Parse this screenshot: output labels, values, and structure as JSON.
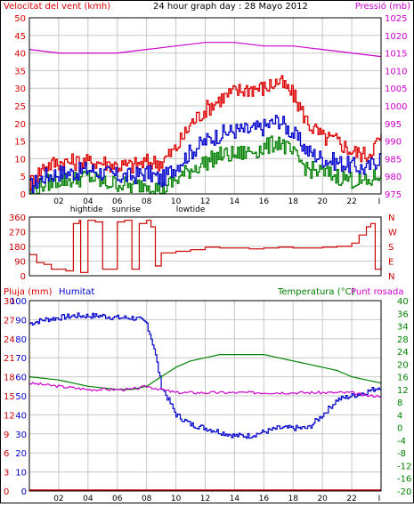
{
  "colors": {
    "wind_avg": "#0000cc",
    "wind_gust": "#dd0000",
    "wind_min": "#008000",
    "pressure": "#cc00cc",
    "direction": "#cc0000",
    "humidity": "#0000cc",
    "rain": "#cc0000",
    "temperature": "#008000",
    "dewpoint": "#cc00cc",
    "grid": "#c8c8c8",
    "frame": "#000000"
  },
  "chart_data": [
    {
      "type": "line",
      "title": "24 hour graph day : 28 Mayo 2012",
      "ylabel_left": "Velocitat del vent (kmh)",
      "ylabel_right": "Pressió (mb)",
      "ylim_left": [
        0,
        50
      ],
      "ylim_right": [
        975,
        1025
      ],
      "yticks_left": [
        "0",
        "5",
        "10",
        "15",
        "20",
        "25",
        "30",
        "35",
        "40",
        "45",
        "50"
      ],
      "yticks_right": [
        "975",
        "980",
        "985",
        "990",
        "995",
        "1000",
        "1005",
        "1010",
        "1015",
        "1020",
        "1025"
      ],
      "x_ticks": [
        "02",
        "04",
        "06",
        "08",
        "10",
        "12",
        "14",
        "16",
        "18",
        "20",
        "22",
        "I"
      ],
      "x_events": [
        {
          "label": "hightide",
          "hour": 3.9
        },
        {
          "label": "sunrise",
          "hour": 6.6
        },
        {
          "label": "lowtide",
          "hour": 11.0
        }
      ],
      "grid": true,
      "series": [
        {
          "name": "Velocitat del vent",
          "axis": "left",
          "x": [
            0,
            1,
            2,
            3,
            4,
            5,
            6,
            7,
            8,
            9,
            10,
            11,
            12,
            13,
            14,
            15,
            16,
            17,
            18,
            19,
            20,
            21,
            22,
            23,
            24
          ],
          "values": [
            2,
            5,
            6,
            6,
            7,
            6,
            5,
            5,
            6,
            4,
            8,
            12,
            15,
            17,
            18,
            18,
            19,
            21,
            17,
            12,
            10,
            9,
            8,
            7,
            11
          ]
        },
        {
          "name": "Ràfega",
          "axis": "left",
          "x": [
            0,
            1,
            2,
            3,
            4,
            5,
            6,
            7,
            8,
            9,
            10,
            11,
            12,
            13,
            14,
            15,
            16,
            17,
            18,
            19,
            20,
            21,
            22,
            23,
            24
          ],
          "values": [
            3,
            8,
            9,
            9,
            9,
            9,
            8,
            8,
            9,
            9,
            13,
            20,
            24,
            27,
            29,
            30,
            30,
            32,
            28,
            20,
            16,
            15,
            12,
            11,
            16
          ]
        },
        {
          "name": "Vent mínim",
          "axis": "left",
          "x": [
            0,
            1,
            2,
            3,
            4,
            5,
            6,
            7,
            8,
            9,
            10,
            11,
            12,
            13,
            14,
            15,
            16,
            17,
            18,
            19,
            20,
            21,
            22,
            23,
            24
          ],
          "values": [
            0,
            3,
            4,
            4,
            5,
            3,
            3,
            2,
            3,
            1,
            4,
            7,
            9,
            11,
            11,
            12,
            13,
            15,
            11,
            7,
            6,
            5,
            4,
            3,
            6
          ]
        },
        {
          "name": "Pressió",
          "axis": "right",
          "x": [
            0,
            2,
            4,
            6,
            8,
            10,
            12,
            14,
            16,
            18,
            20,
            22,
            24
          ],
          "values": [
            1016,
            1015,
            1015,
            1015,
            1016,
            1017,
            1018,
            1018,
            1017,
            1017,
            1016,
            1015,
            1014
          ]
        }
      ]
    },
    {
      "type": "line",
      "ylim": [
        0,
        360
      ],
      "yticks": [
        "0",
        "90",
        "180",
        "270",
        "360"
      ],
      "compass": [
        "N",
        "W",
        "S",
        "E",
        "N"
      ],
      "x_ticks": [],
      "series": [
        {
          "name": "Direcció del vent",
          "x": [
            0,
            0.5,
            1,
            1.5,
            2,
            2.5,
            3,
            3.4,
            3.5,
            4,
            4.5,
            5,
            5.5,
            6,
            6.5,
            7,
            7.5,
            8,
            8.3,
            8.6,
            9,
            10,
            11,
            12,
            13,
            14,
            15,
            16,
            17,
            18,
            19,
            20,
            21,
            22,
            22.5,
            23,
            23.3,
            23.6,
            24
          ],
          "values": [
            130,
            80,
            70,
            40,
            40,
            30,
            320,
            340,
            20,
            340,
            330,
            40,
            40,
            330,
            340,
            40,
            320,
            340,
            300,
            60,
            140,
            150,
            160,
            175,
            170,
            170,
            165,
            170,
            175,
            170,
            170,
            175,
            180,
            200,
            250,
            300,
            320,
            40,
            60
          ]
        }
      ]
    },
    {
      "type": "line",
      "ylabel_left_outer": "Pluja (mm)",
      "ylabel_left_inner": "Humitat",
      "ylabel_right": "Temperatura (°C)",
      "ylabel_right2": "Punt rosada",
      "ylim_rain": [
        0,
        30
      ],
      "ylim_humidity": [
        0,
        100
      ],
      "ylim_temp": [
        -20,
        40
      ],
      "yticks_rain": [
        "0",
        "3",
        "6",
        "9",
        "12",
        "15",
        "18",
        "21",
        "24",
        "27",
        "30"
      ],
      "yticks_humidity": [
        "0",
        "10",
        "20",
        "30",
        "40",
        "50",
        "60",
        "70",
        "80",
        "90",
        "100"
      ],
      "yticks_temp": [
        "-20",
        "-16",
        "-12",
        "-8",
        "-4",
        "0",
        "4",
        "8",
        "12",
        "16",
        "20",
        "24",
        "28",
        "34",
        "36",
        "40"
      ],
      "x_ticks": [
        "02",
        "04",
        "06",
        "08",
        "10",
        "12",
        "14",
        "16",
        "18",
        "20",
        "22",
        "I"
      ],
      "x_events": [
        {
          "label": "hightide",
          "hour": 3.9
        },
        {
          "label": "sunrise",
          "hour": 6.6
        },
        {
          "label": "lowtide",
          "hour": 11.0
        }
      ],
      "grid": true,
      "series": [
        {
          "name": "Humitat",
          "axis": "humidity",
          "x": [
            0,
            1,
            2,
            3,
            4,
            5,
            6,
            7,
            7.5,
            8,
            8.5,
            9,
            10,
            11,
            12,
            13,
            14,
            15,
            16,
            17,
            18,
            19,
            20,
            21,
            22,
            23,
            24
          ],
          "values": [
            88,
            90,
            91,
            92,
            92,
            92,
            91,
            91,
            90,
            88,
            75,
            55,
            40,
            35,
            33,
            31,
            29,
            29,
            31,
            33,
            33,
            33,
            40,
            48,
            50,
            52,
            55
          ]
        },
        {
          "name": "Pluja",
          "axis": "rain",
          "x": [
            0,
            24
          ],
          "values": [
            0,
            0
          ]
        },
        {
          "name": "Temperatura",
          "axis": "temp",
          "x": [
            0,
            2,
            4,
            6,
            7,
            8,
            9,
            10,
            11,
            12,
            13,
            14,
            15,
            16,
            17,
            18,
            19,
            20,
            21,
            22,
            23,
            24
          ],
          "values": [
            16,
            15,
            13,
            12,
            12,
            13,
            16,
            19,
            21,
            22,
            23,
            23,
            23,
            23,
            22,
            21,
            20,
            19,
            18,
            16,
            15,
            14
          ]
        },
        {
          "name": "Punt rosada",
          "axis": "temp",
          "x": [
            0,
            2,
            4,
            6,
            7,
            8,
            9,
            10,
            11,
            12,
            13,
            14,
            15,
            16,
            17,
            18,
            19,
            20,
            21,
            22,
            23,
            24
          ],
          "values": [
            14,
            13,
            12,
            12,
            12,
            13,
            12,
            11,
            11,
            11,
            11,
            11,
            11,
            11,
            11,
            11,
            11,
            11,
            11,
            11,
            10,
            10
          ]
        }
      ]
    }
  ]
}
